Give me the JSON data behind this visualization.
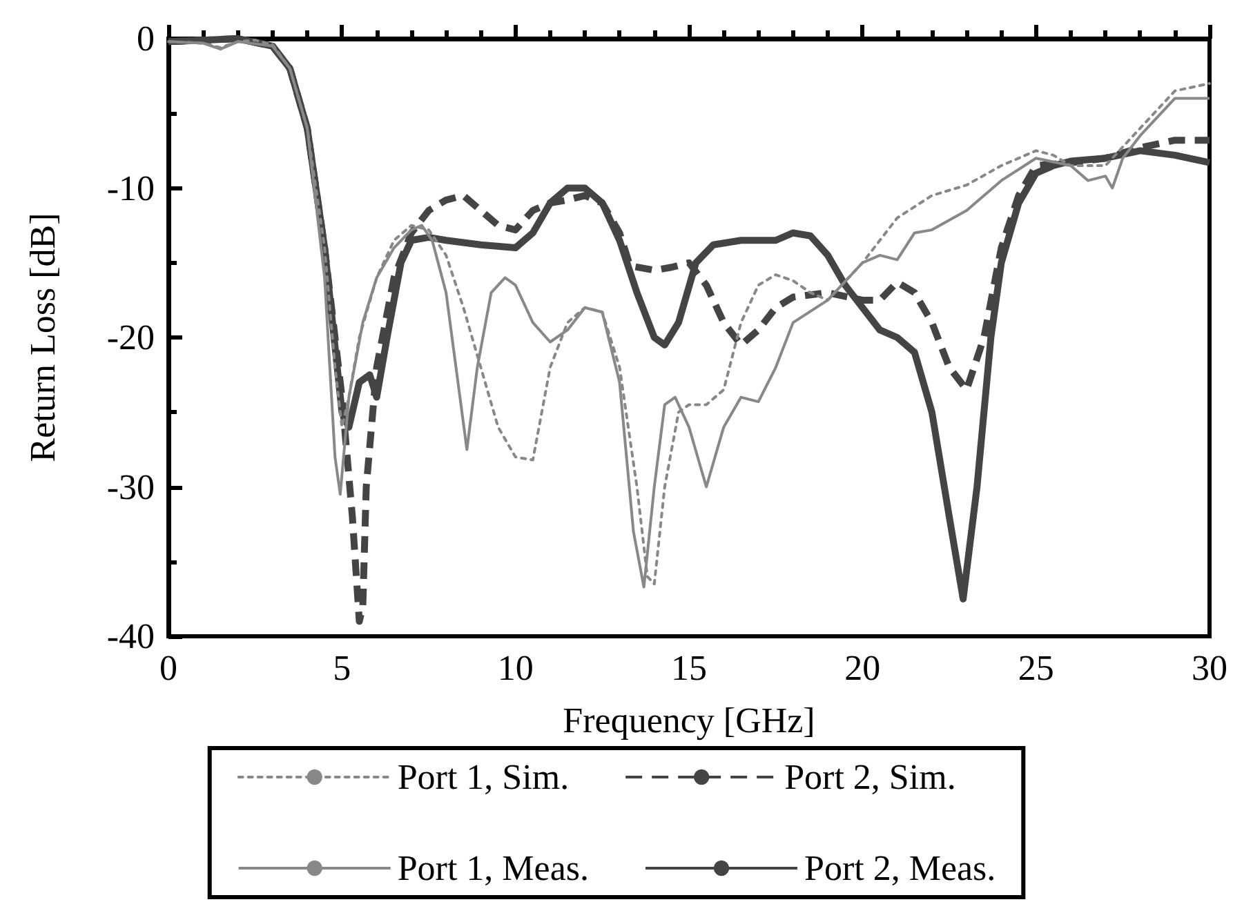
{
  "chart_data": {
    "type": "line",
    "xlabel": "Frequency [GHz]",
    "ylabel": "Return Loss [dB]",
    "xlim": [
      0,
      30
    ],
    "xticks": [
      0,
      5,
      10,
      15,
      20,
      25,
      30
    ],
    "ylim": [
      -40,
      0
    ],
    "yticks": [
      -40,
      -30,
      -20,
      -10,
      0
    ],
    "grid": false,
    "legend": "bottom",
    "marker": "none",
    "series": [
      {
        "name": "Port 1, Sim.",
        "color": "#888888",
        "line_style": "dotted",
        "x": [
          0,
          1,
          1.5,
          2,
          2.5,
          3,
          3.5,
          4,
          4.5,
          4.8,
          5,
          5.2,
          5.5,
          6,
          6.5,
          7,
          7.5,
          8,
          8.5,
          9,
          9.5,
          10,
          10.5,
          11,
          11.5,
          12,
          12.5,
          13,
          13.5,
          13.8,
          14,
          14.3,
          14.7,
          15,
          15.5,
          16,
          16.5,
          17,
          17.5,
          18,
          18.5,
          19,
          20,
          21,
          22,
          23,
          24,
          25,
          25.5,
          26,
          27,
          28,
          29,
          30
        ],
        "values": [
          -0.2,
          -0.3,
          -0.6,
          -0.2,
          -0.1,
          -0.4,
          -2,
          -6,
          -14,
          -22,
          -26,
          -24,
          -20,
          -16,
          -13.5,
          -12.5,
          -12.8,
          -14.5,
          -18,
          -22,
          -26,
          -28,
          -28.2,
          -22,
          -19,
          -18,
          -18.3,
          -22,
          -30,
          -36,
          -36.5,
          -30,
          -25,
          -24.5,
          -24.5,
          -23.5,
          -19,
          -16.5,
          -15.8,
          -16.2,
          -17,
          -17.5,
          -15,
          -12,
          -10.5,
          -9.8,
          -8.5,
          -7.5,
          -7.8,
          -8.5,
          -8.5,
          -6,
          -3.5,
          -3
        ]
      },
      {
        "name": "Port 2, Sim.",
        "color": "#444444",
        "line_style": "dashed",
        "x": [
          0,
          1,
          2,
          3,
          3.5,
          4,
          4.5,
          5,
          5.3,
          5.5,
          5.6,
          5.7,
          6,
          6.5,
          7,
          7.5,
          8,
          8.5,
          9,
          9.5,
          10,
          10.5,
          11,
          11.5,
          12,
          12.5,
          13,
          13.3,
          14,
          14.5,
          15,
          15.5,
          16,
          16.5,
          17,
          17.5,
          18,
          19,
          20,
          20.5,
          21,
          21.5,
          22,
          22.5,
          23,
          23.5,
          24,
          24.5,
          25,
          26,
          27,
          28,
          29,
          30
        ],
        "values": [
          -0.2,
          -0.1,
          0,
          -0.5,
          -2,
          -6,
          -14,
          -24,
          -32,
          -39,
          -38,
          -30,
          -22,
          -16,
          -13,
          -11.5,
          -10.8,
          -10.5,
          -11.5,
          -12.5,
          -12.8,
          -11.5,
          -11,
          -10.8,
          -10.5,
          -11,
          -13,
          -15.2,
          -15.5,
          -15.3,
          -15,
          -16.5,
          -19,
          -20.5,
          -19.5,
          -18,
          -17.3,
          -17,
          -17.5,
          -17.5,
          -16.3,
          -17,
          -19,
          -22,
          -23.5,
          -20,
          -14,
          -10.5,
          -8.5,
          -8.3,
          -8,
          -7.3,
          -6.8,
          -6.8
        ]
      },
      {
        "name": "Port 1, Meas.",
        "color": "#888888",
        "line_style": "solid",
        "x": [
          0,
          1,
          1.5,
          2,
          3,
          3.5,
          4,
          4.5,
          4.8,
          4.95,
          5.2,
          5.6,
          6,
          6.5,
          7,
          7.3,
          7.6,
          8,
          8.4,
          8.6,
          8.9,
          9.3,
          9.7,
          10,
          10.5,
          11,
          11.5,
          12,
          12.5,
          13,
          13.4,
          13.7,
          14,
          14.3,
          14.6,
          15,
          15.5,
          16,
          16.5,
          17,
          17.5,
          18,
          19,
          20,
          20.5,
          21,
          21.5,
          22,
          23,
          24,
          25,
          26,
          26.5,
          27,
          27.2,
          27.5,
          28,
          29,
          30
        ],
        "values": [
          -0.2,
          -0.3,
          -0.7,
          -0.2,
          -0.5,
          -2,
          -6,
          -16,
          -28,
          -30.5,
          -24,
          -19,
          -16,
          -14,
          -12.8,
          -12.5,
          -13.5,
          -17,
          -24,
          -27.5,
          -22,
          -17,
          -16,
          -16.5,
          -19,
          -20.3,
          -19.5,
          -18,
          -18.3,
          -23,
          -33,
          -36.7,
          -30,
          -24.5,
          -24,
          -26,
          -30,
          -26,
          -24,
          -24.3,
          -22,
          -19,
          -17.5,
          -15,
          -14.5,
          -14.8,
          -13,
          -12.8,
          -11.5,
          -9.5,
          -8,
          -8.5,
          -9.5,
          -9.2,
          -10,
          -8,
          -6.5,
          -4,
          -4
        ]
      },
      {
        "name": "Port 2, Meas.",
        "color": "#444444",
        "line_style": "solid",
        "x": [
          0,
          2,
          3,
          3.5,
          4,
          4.5,
          5,
          5.2,
          5.5,
          5.8,
          6,
          6.3,
          6.7,
          7,
          7.5,
          8,
          9,
          10,
          10.5,
          11,
          11.5,
          12,
          12.5,
          13,
          13.5,
          14,
          14.3,
          14.7,
          15.2,
          15.7,
          16.5,
          17.5,
          18,
          18.5,
          19,
          19.5,
          20,
          20.5,
          21,
          21.5,
          22,
          22.5,
          22.9,
          23.3,
          23.7,
          24,
          24.5,
          25,
          25.5,
          26,
          27,
          28,
          29,
          30
        ],
        "values": [
          -0.2,
          0,
          -0.5,
          -2,
          -6,
          -14,
          -25,
          -26,
          -23,
          -22.5,
          -24,
          -20,
          -15,
          -13.5,
          -13.3,
          -13.5,
          -13.8,
          -14,
          -13,
          -11,
          -10,
          -10,
          -11,
          -13.5,
          -17,
          -20,
          -20.5,
          -19,
          -15,
          -13.8,
          -13.5,
          -13.5,
          -13,
          -13.2,
          -14.5,
          -16.5,
          -18,
          -19.5,
          -20,
          -21,
          -25,
          -32,
          -37.5,
          -30,
          -20,
          -15,
          -11,
          -9,
          -8.5,
          -8.2,
          -8,
          -7.5,
          -7.8,
          -8.3
        ]
      }
    ]
  }
}
